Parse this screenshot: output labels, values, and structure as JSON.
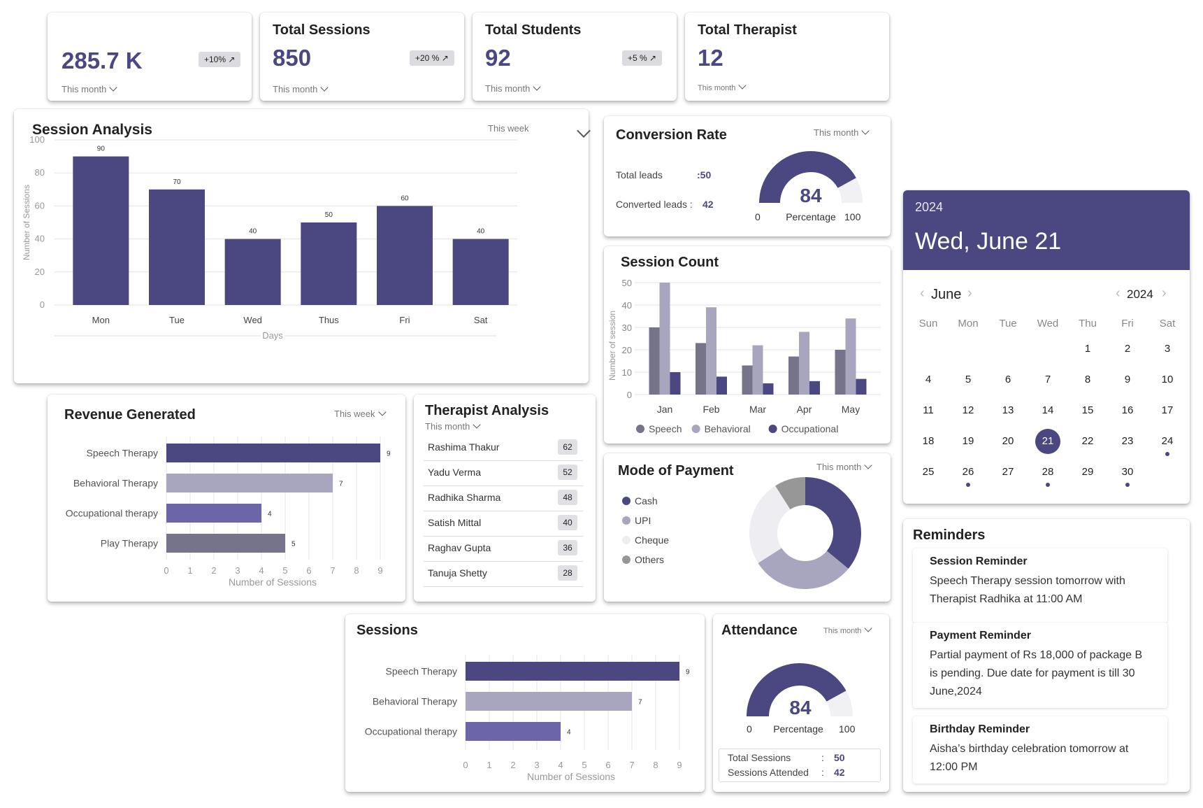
{
  "stats": [
    {
      "title": "",
      "value": "285.7 K",
      "badge": "+10% ↗",
      "period": "This month"
    },
    {
      "title": "Total Sessions",
      "value": "850",
      "badge": "+20 % ↗",
      "period": "This month"
    },
    {
      "title": "Total Students",
      "value": "92",
      "badge": "+5 % ↗",
      "period": "This month"
    },
    {
      "title": "Total Therapist",
      "value": "12",
      "badge": "",
      "period": "This month"
    }
  ],
  "session_analysis": {
    "title": "Session Analysis",
    "period": "This week"
  },
  "conversion": {
    "title": "Conversion Rate",
    "period": "This month",
    "total_leads_label": "Total leads",
    "total_leads_value": ":50",
    "converted_label": "Converted leads :",
    "converted_value": "42",
    "gauge_value": "84",
    "gauge_min": "0",
    "gauge_label": "Percentage",
    "gauge_max": "100"
  },
  "session_count": {
    "title": "Session Count"
  },
  "calendar": {
    "year": "2024",
    "date_header": "Wed, June 21",
    "month_label": "June",
    "year_label": "2024",
    "weekdays": [
      "Sun",
      "Mon",
      "Tue",
      "Wed",
      "Thu",
      "Fri",
      "Sat"
    ],
    "days": [
      "1",
      "2",
      "3",
      "4",
      "5",
      "6",
      "7",
      "8",
      "9",
      "10",
      "11",
      "12",
      "13",
      "14",
      "15",
      "16",
      "17",
      "18",
      "19",
      "20",
      "21",
      "22",
      "23",
      "24",
      "25",
      "26",
      "27",
      "28",
      "29",
      "30"
    ],
    "selected": "21",
    "dotted": [
      "24",
      "26",
      "28",
      "30"
    ],
    "prev_icon": "‹",
    "next_icon": "›"
  },
  "revenue": {
    "title": "Revenue Generated",
    "period": "This week"
  },
  "therapist_analysis": {
    "title": "Therapist Analysis",
    "period": "This month",
    "rows": [
      {
        "name": "Rashima Thakur",
        "value": "62"
      },
      {
        "name": "Yadu Verma",
        "value": "52"
      },
      {
        "name": "Radhika Sharma",
        "value": "48"
      },
      {
        "name": "Satish Mittal",
        "value": "40"
      },
      {
        "name": "Raghav Gupta",
        "value": "36"
      },
      {
        "name": "Tanuja Shetty",
        "value": "28"
      }
    ]
  },
  "payment": {
    "title": "Mode of Payment",
    "period": "This month",
    "legend": [
      "Cash",
      "UPI",
      "Cheque",
      "Others"
    ]
  },
  "sessions": {
    "title": "Sessions"
  },
  "attendance": {
    "title": "Attendance",
    "period": "This month",
    "gauge_value": "84",
    "gauge_min": "0",
    "gauge_label": "Percentage",
    "gauge_max": "100",
    "total_label": "Total Sessions",
    "total_value": "50",
    "attended_label": "Sessions Attended",
    "attended_value": "42",
    "sep": ":"
  },
  "reminders": {
    "title": "Reminders",
    "items": [
      {
        "title": "Session Reminder",
        "text": "Speech Therapy session tomorrow with Therapist Radhika at 11:00 AM"
      },
      {
        "title": "Payment Reminder",
        "text": "Partial payment of Rs 18,000 of package B is pending. Due date for payment is till 30 June,2024"
      },
      {
        "title": "Birthday Reminder",
        "text": "Aisha’s birthday celebration tomorrow at 12:00 PM"
      }
    ]
  },
  "colors": {
    "primary": "#4b4780",
    "light": "#a8a6bf",
    "mid": "#6c66a8",
    "grey": "#76748a",
    "dark": "#4b4780"
  },
  "chart_data": [
    {
      "id": "session_analysis",
      "type": "bar",
      "title": "Session Analysis",
      "categories": [
        "Mon",
        "Tue",
        "Wed",
        "Thus",
        "Fri",
        "Sat"
      ],
      "values": [
        90,
        70,
        40,
        50,
        60,
        40
      ],
      "xlabel": "Days",
      "ylabel": "Number of Sessions",
      "ylim": [
        0,
        100
      ],
      "yticks": [
        "0",
        "20",
        "40",
        "60",
        "80",
        "100"
      ]
    },
    {
      "id": "session_count",
      "type": "bar",
      "title": "Session Count",
      "categories": [
        "Jan",
        "Feb",
        "Mar",
        "Apr",
        "May"
      ],
      "series": [
        {
          "name": "Speech",
          "values": [
            30,
            23,
            13,
            17,
            20
          ]
        },
        {
          "name": "Behavioral",
          "values": [
            50,
            39,
            22,
            28,
            34
          ]
        },
        {
          "name": "Occupational",
          "values": [
            10,
            8,
            5,
            6,
            7
          ]
        }
      ],
      "ylabel": "Number of session",
      "ylim": [
        0,
        50
      ],
      "yticks": [
        "0",
        "10",
        "20",
        "30",
        "40",
        "50"
      ]
    },
    {
      "id": "revenue",
      "type": "bar",
      "orientation": "horizontal",
      "title": "Revenue Generated",
      "categories": [
        "Speech Therapy",
        "Behavioral Therapy",
        "Occupational therapy",
        "Play Therapy"
      ],
      "values": [
        9,
        7,
        4,
        5
      ],
      "xlabel": "Number of Sessions",
      "xlim": [
        0,
        9
      ],
      "xticks": [
        "0",
        "1",
        "2",
        "3",
        "4",
        "5",
        "6",
        "7",
        "8",
        "9"
      ]
    },
    {
      "id": "sessions",
      "type": "bar",
      "orientation": "horizontal",
      "title": "Sessions",
      "categories": [
        "Speech Therapy",
        "Behavioral Therapy",
        "Occupational therapy"
      ],
      "values": [
        9,
        7,
        4
      ],
      "xlabel": "Number of Sessions",
      "xlim": [
        0,
        9
      ],
      "xticks": [
        "0",
        "1",
        "2",
        "3",
        "4",
        "5",
        "6",
        "7",
        "8",
        "9"
      ]
    },
    {
      "id": "payment",
      "type": "pie",
      "title": "Mode of Payment",
      "labels": [
        "Cash",
        "UPI",
        "Cheque",
        "Others"
      ],
      "values": [
        36,
        30,
        25,
        9
      ]
    },
    {
      "id": "conversion_gauge",
      "type": "pie",
      "title": "Conversion Rate",
      "labels": [
        "Percentage"
      ],
      "values": [
        84
      ],
      "range": [
        0,
        100
      ]
    },
    {
      "id": "attendance_gauge",
      "type": "pie",
      "title": "Attendance",
      "labels": [
        "Percentage"
      ],
      "values": [
        84
      ],
      "range": [
        0,
        100
      ]
    }
  ]
}
